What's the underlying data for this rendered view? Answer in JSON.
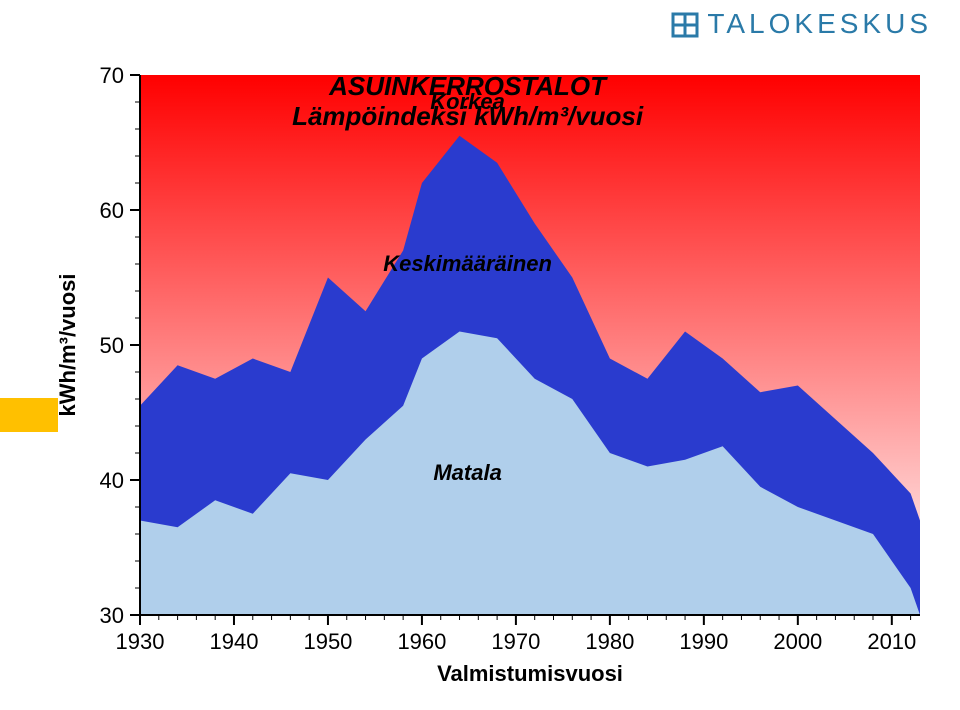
{
  "logo_text": "TALOKESKUS",
  "title_line1": "ASUINKERROSTALOT",
  "title_line2": "Lämpöindeksi kWh/m³/vuosi",
  "label_high": "Korkea",
  "label_mid": "Keskimääräinen",
  "label_low": "Matala",
  "y_axis_label": "kWh/m³/vuosi",
  "x_axis_label": "Valmistumisvuosi",
  "chart": {
    "type": "area",
    "xlim": [
      1930,
      2013
    ],
    "ylim": [
      30,
      70
    ],
    "x_major_step": 10,
    "x_minor_step": 2,
    "y_major_step": 10,
    "y_minor_step": 2,
    "x_ticks": [
      1930,
      1940,
      1950,
      1960,
      1970,
      1980,
      1990,
      2000,
      2010
    ],
    "y_ticks": [
      30,
      40,
      50,
      60,
      70
    ],
    "background_gradient": {
      "top": "#ff0000",
      "bottom": "#ffffff"
    },
    "series_high_color": "#2a3bce",
    "series_low_color": "#b0cfeb",
    "text_color": "#000000",
    "title_fontsize": 26,
    "label_fontsize": 22,
    "tick_fontsize": 22,
    "years": [
      1930,
      1934,
      1938,
      1942,
      1946,
      1950,
      1954,
      1958,
      1960,
      1964,
      1968,
      1972,
      1976,
      1980,
      1984,
      1988,
      1992,
      1996,
      2000,
      2004,
      2008,
      2012,
      2013
    ],
    "high_vals": [
      45.5,
      48.5,
      47.5,
      49.0,
      48.0,
      55.0,
      52.5,
      57.0,
      62.0,
      65.5,
      63.5,
      59.0,
      55.0,
      49.0,
      47.5,
      51.0,
      49.0,
      46.5,
      47.0,
      44.5,
      42.0,
      39.0,
      37.0
    ],
    "low_vals": [
      37.0,
      36.5,
      38.5,
      37.5,
      40.5,
      40.0,
      43.0,
      45.5,
      49.0,
      51.0,
      50.5,
      47.5,
      46.0,
      42.0,
      41.0,
      41.5,
      42.5,
      39.5,
      38.0,
      37.0,
      36.0,
      32.0,
      30.0
    ]
  }
}
